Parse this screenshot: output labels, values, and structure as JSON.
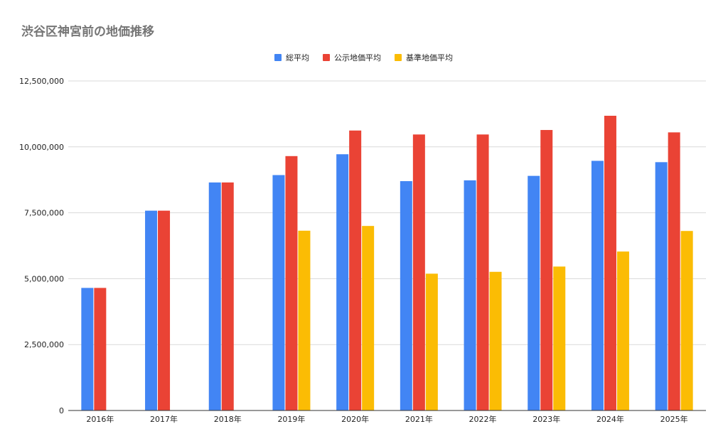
{
  "chart_data": {
    "type": "bar",
    "title": "渋谷区神宮前の地価推移",
    "xlabel": "",
    "ylabel": "",
    "categories": [
      "2016年",
      "2017年",
      "2018年",
      "2019年",
      "2020年",
      "2021年",
      "2022年",
      "2023年",
      "2024年",
      "2025年"
    ],
    "series": [
      {
        "name": "総平均",
        "color": "#4285f4",
        "values": [
          4650000,
          7580000,
          8650000,
          8930000,
          9720000,
          8700000,
          8730000,
          8900000,
          9470000,
          9420000
        ]
      },
      {
        "name": "公示地価平均",
        "color": "#ea4335",
        "values": [
          4650000,
          7580000,
          8650000,
          9650000,
          10620000,
          10470000,
          10470000,
          10640000,
          11180000,
          10550000
        ]
      },
      {
        "name": "基準地価平均",
        "color": "#fbbc04",
        "values": [
          null,
          null,
          null,
          6820000,
          7000000,
          5190000,
          5260000,
          5460000,
          6030000,
          6810000
        ]
      }
    ],
    "ylim": [
      0,
      12500000
    ],
    "yticks": [
      0,
      2500000,
      5000000,
      7500000,
      10000000,
      12500000
    ],
    "ytick_labels": [
      "0",
      "2,500,000",
      "5,000,000",
      "7,500,000",
      "10,000,000",
      "12,500,000"
    ],
    "grid": true,
    "legend_position": "top-center"
  }
}
